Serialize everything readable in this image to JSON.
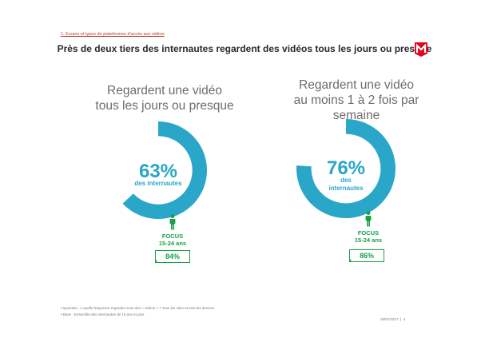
{
  "section": "1. Ecrans et types de plateformes d'accès aux vidéos",
  "title": "Près de deux tiers des internautes regardent des vidéos tous les jours ou presque",
  "colors": {
    "accent": "#2aa6c8",
    "track": "#ffffff",
    "focus": "#17a04a",
    "brand": "#e3001b"
  },
  "chart_data": [
    {
      "type": "pie",
      "heading": [
        "Regardent une vidéo",
        "tous les jours ou presque"
      ],
      "value": 63,
      "value_label": "63%",
      "sublabel": [
        "des internautes"
      ],
      "focus": {
        "label": "FOCUS",
        "group": "15-24 ans",
        "value": 84,
        "value_label": "84%"
      }
    },
    {
      "type": "pie",
      "heading": [
        "Regardent une vidéo",
        "au moins 1 à 2 fois par",
        "semaine"
      ],
      "value": 76,
      "value_label": "76%",
      "sublabel": [
        "des",
        "internautes"
      ],
      "focus": {
        "label": "FOCUS",
        "group": "15-24 ans",
        "value": 86,
        "value_label": "86%"
      }
    }
  ],
  "notes": [
    "Question : A quelle fréquence regardez-vous des « vidéos » ? Tous les sites et tous les devices",
    "Base : Ensemble des internautes de 15 ans et plus"
  ],
  "footer": {
    "date": "18/07/2017",
    "page": "4"
  }
}
